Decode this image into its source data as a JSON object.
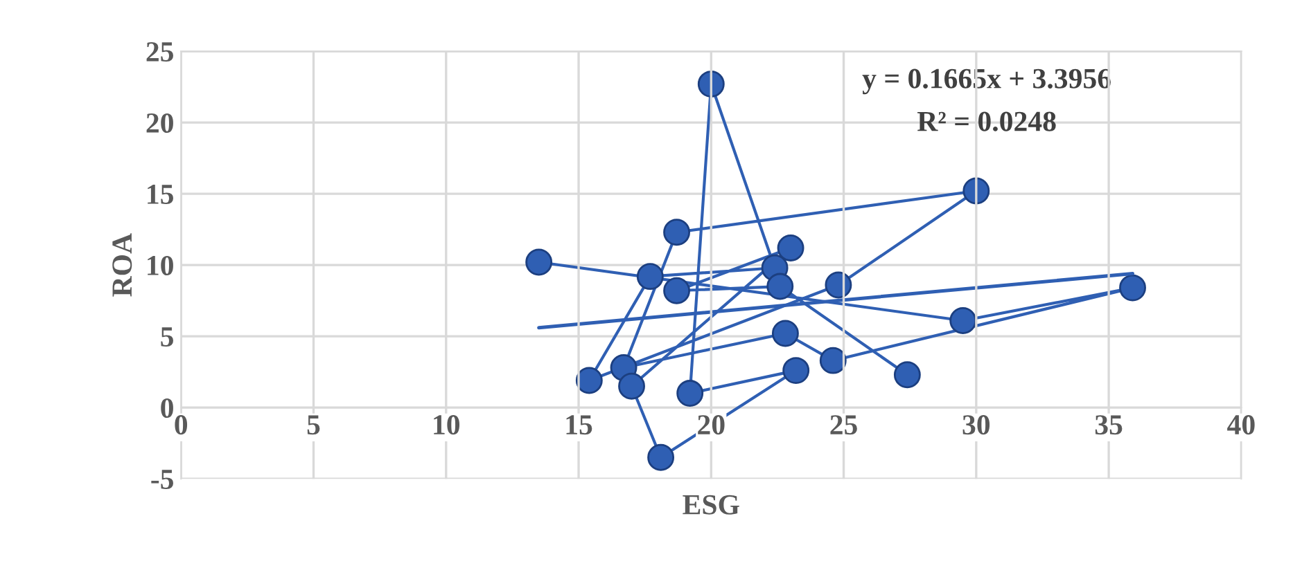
{
  "chart_data": {
    "type": "line",
    "xlabel": "ESG",
    "ylabel": "ROA",
    "series": [
      {
        "color": "#2f5fb3",
        "marker": "circle",
        "x": [
          13.5,
          29.5,
          35.9,
          24.6,
          22.8,
          16.7,
          18.7,
          30.0,
          24.8,
          15.4,
          17.7,
          22.4,
          20.0,
          19.2,
          23.2,
          18.1,
          17.0,
          23.0,
          18.7,
          22.6,
          27.4
        ],
        "values": [
          10.2,
          6.1,
          8.4,
          3.3,
          5.2,
          2.8,
          12.3,
          15.2,
          8.6,
          1.9,
          9.2,
          9.8,
          22.7,
          1.0,
          2.6,
          -3.5,
          1.5,
          11.2,
          8.2,
          8.5,
          2.3
        ]
      },
      {
        "type": "line",
        "color": "#2f5fb3",
        "marker": "none",
        "x": [
          13.5,
          35.9
        ],
        "values": [
          5.6,
          9.4
        ]
      }
    ],
    "xlim": [
      0,
      40
    ],
    "xticks": [
      0,
      5,
      10,
      15,
      20,
      25,
      30,
      35,
      40
    ],
    "ylim": [
      -5,
      25
    ],
    "yticks": [
      -5,
      0,
      5,
      10,
      15,
      20,
      25
    ],
    "grid": true,
    "annotations": [
      "y = 0.1665x + 3.3956",
      "R² = 0.0248"
    ]
  }
}
